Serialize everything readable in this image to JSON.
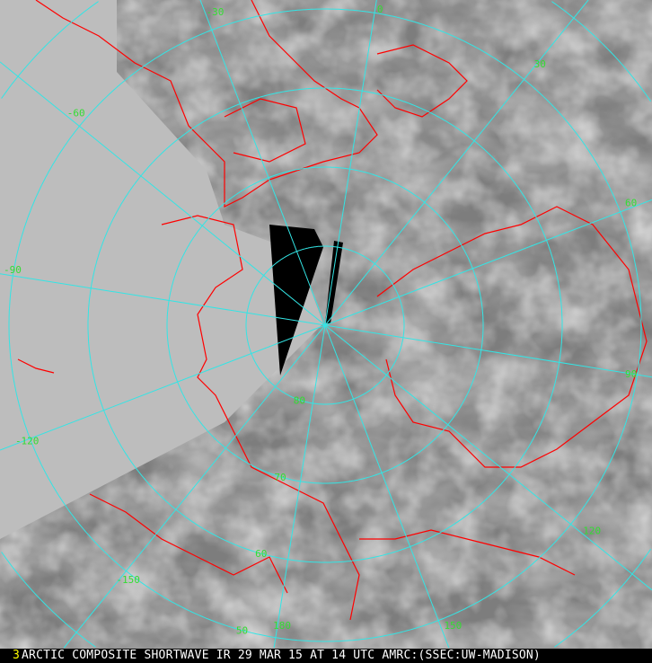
{
  "caption": {
    "frame_number": "3",
    "text": "ARCTIC COMPOSITE SHORTWAVE IR 29 MAR 15 AT 14 UTC AMRC:(SSEC:UW-MADISON)"
  },
  "map": {
    "projection": "polar stereographic, north pole centered",
    "grid_color": "#33e5e5",
    "coastline_color": "#ff0000",
    "label_color": "#33dd33",
    "longitude_labels": [
      "-30",
      "0",
      "30",
      "-60",
      "-90",
      "-120",
      "-150",
      "180",
      "150",
      "120",
      "90",
      "60"
    ],
    "latitude_labels": [
      "80",
      "70",
      "60",
      "50"
    ]
  }
}
